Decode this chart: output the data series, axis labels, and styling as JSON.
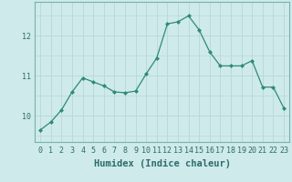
{
  "x": [
    0,
    1,
    2,
    3,
    4,
    5,
    6,
    7,
    8,
    9,
    10,
    11,
    12,
    13,
    14,
    15,
    16,
    17,
    18,
    19,
    20,
    21,
    22,
    23
  ],
  "y": [
    9.65,
    9.85,
    10.15,
    10.6,
    10.95,
    10.85,
    10.75,
    10.6,
    10.58,
    10.62,
    11.05,
    11.45,
    12.3,
    12.35,
    12.5,
    12.15,
    11.6,
    11.25,
    11.25,
    11.25,
    11.38,
    10.72,
    10.72,
    10.2
  ],
  "line_color": "#2e8b74",
  "marker": "D",
  "markersize": 2.0,
  "linewidth": 0.9,
  "xlabel": "Humidex (Indice chaleur)",
  "xlim": [
    -0.5,
    23.5
  ],
  "ylim": [
    9.35,
    12.85
  ],
  "yticks": [
    10,
    11,
    12
  ],
  "xticks": [
    0,
    1,
    2,
    3,
    4,
    5,
    6,
    7,
    8,
    9,
    10,
    11,
    12,
    13,
    14,
    15,
    16,
    17,
    18,
    19,
    20,
    21,
    22,
    23
  ],
  "xtick_labels": [
    "0",
    "1",
    "2",
    "3",
    "4",
    "5",
    "6",
    "7",
    "8",
    "9",
    "10",
    "11",
    "12",
    "13",
    "14",
    "15",
    "16",
    "17",
    "18",
    "19",
    "20",
    "21",
    "22",
    "23"
  ],
  "background_color": "#ceeaea",
  "grid_color": "#b8d8d8",
  "tick_fontsize": 6,
  "xlabel_fontsize": 7.5
}
